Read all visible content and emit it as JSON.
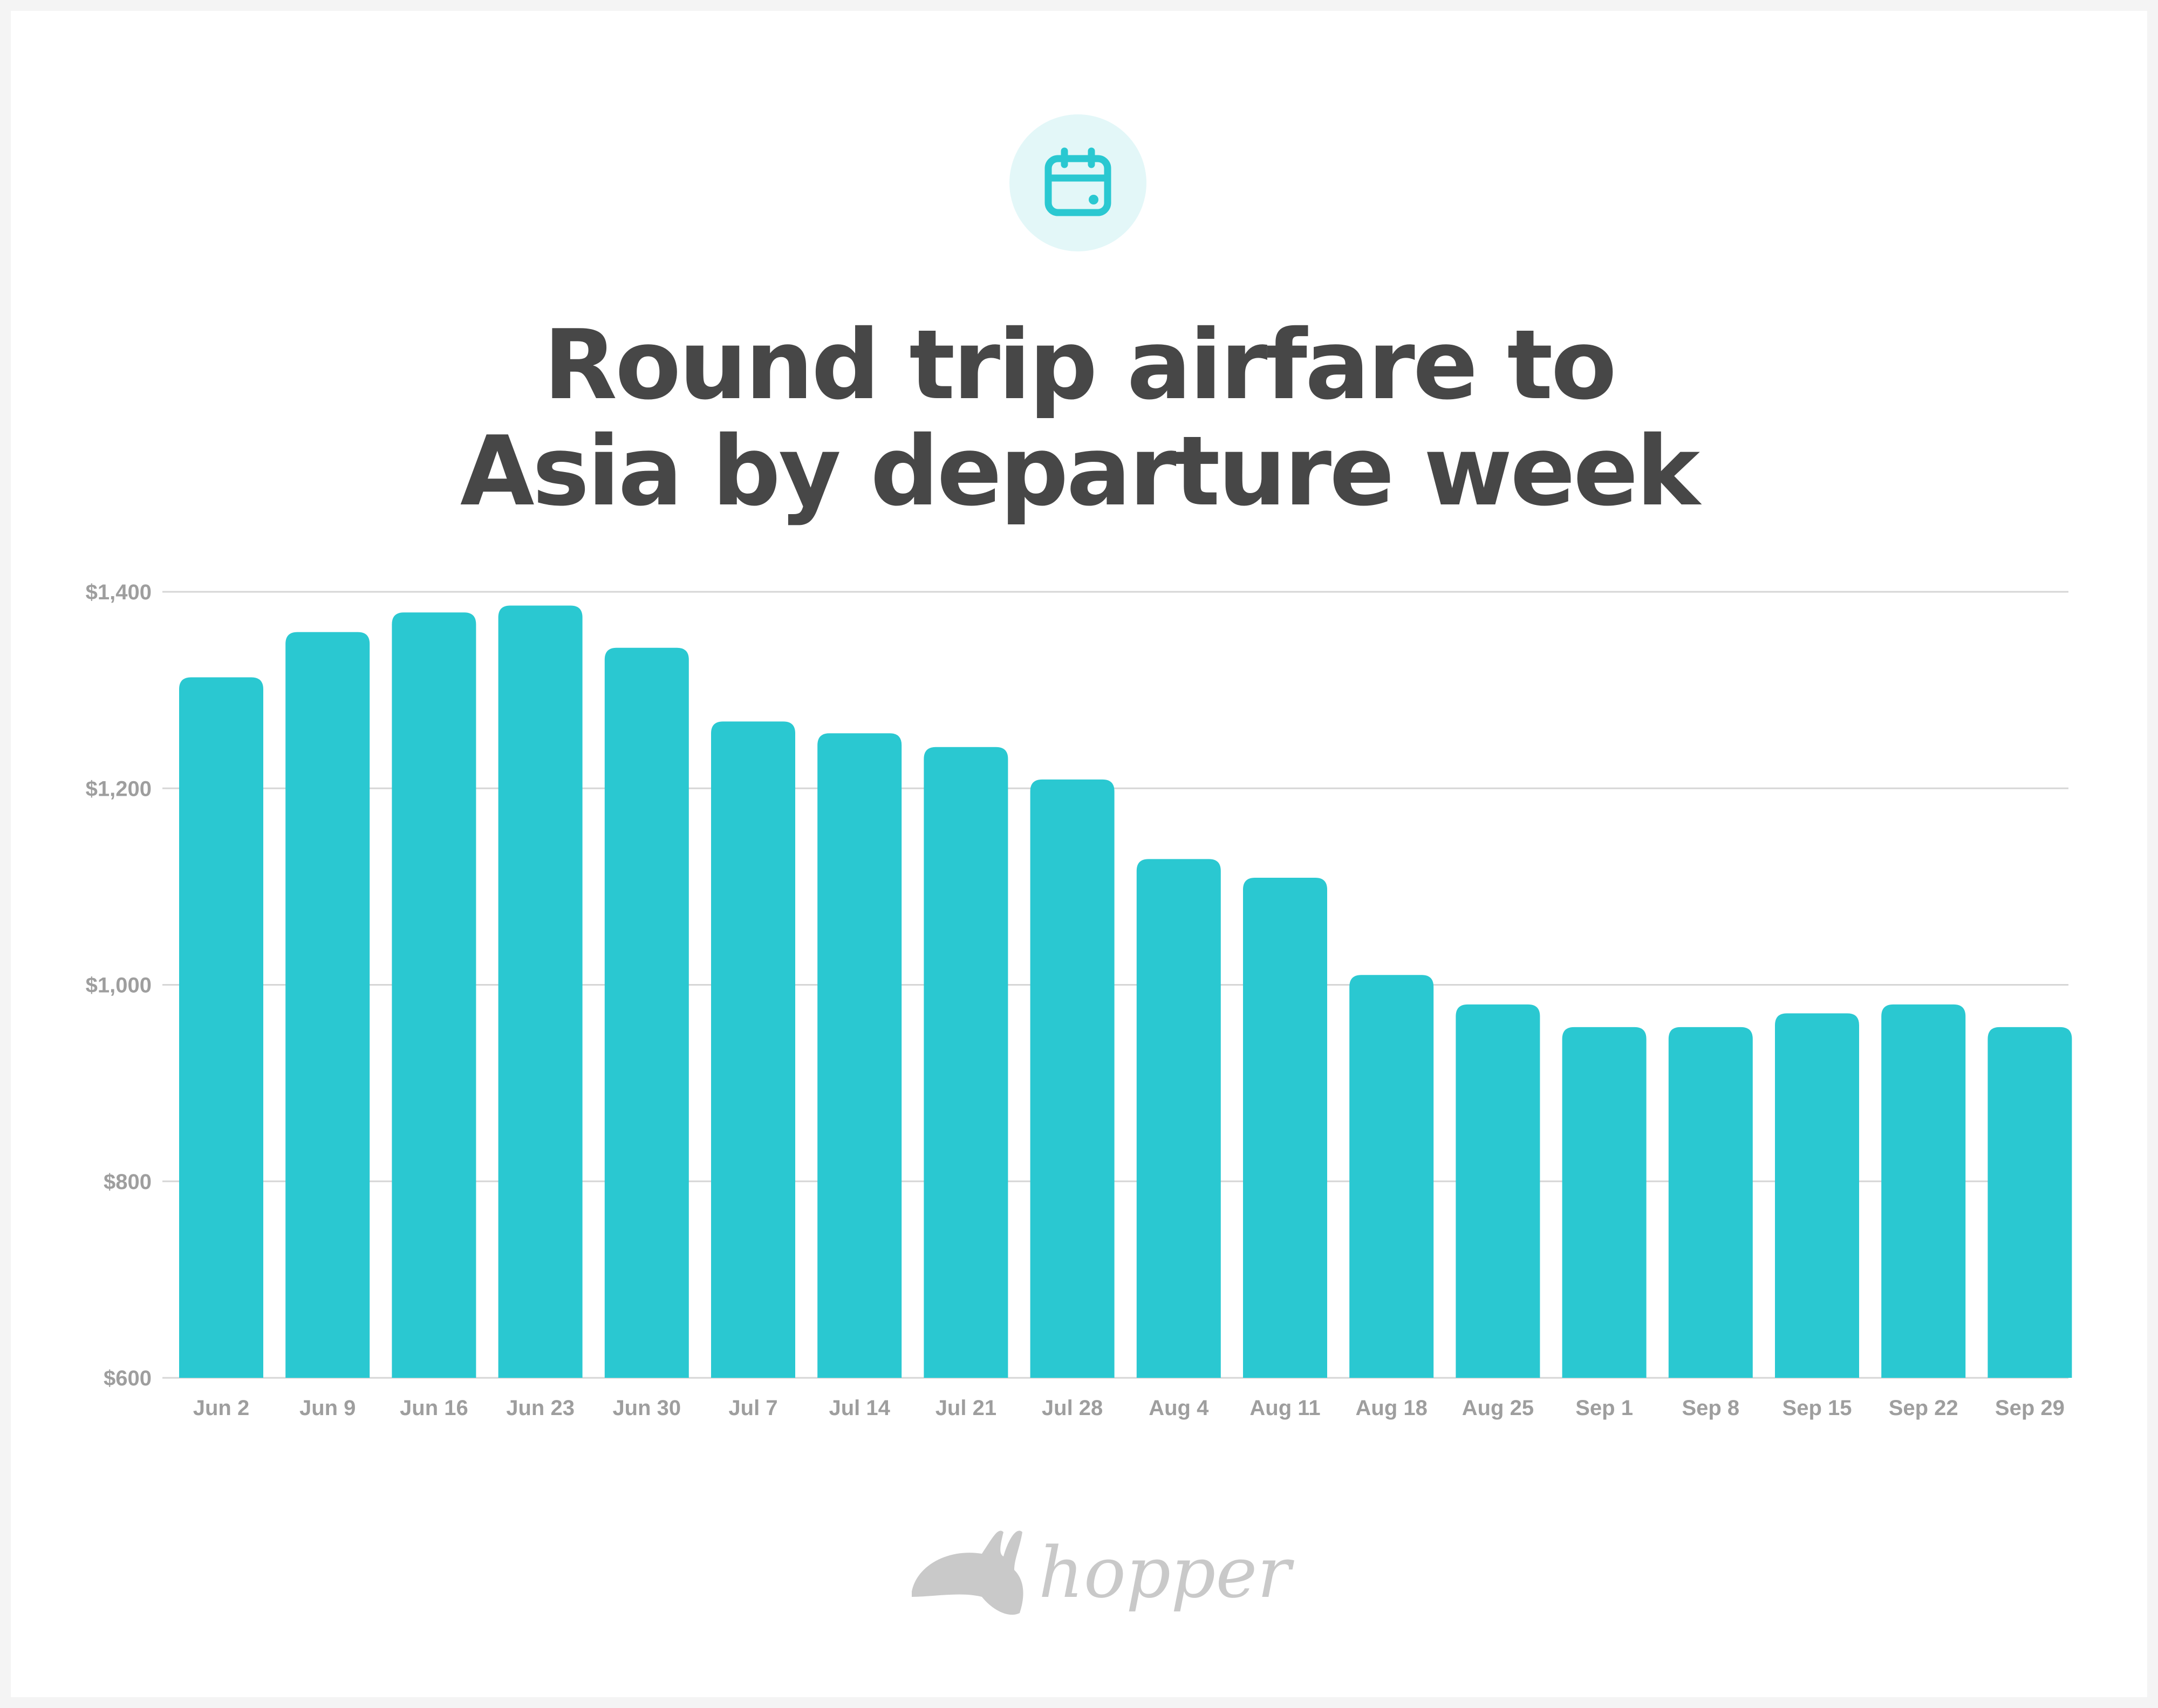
{
  "title_lines": [
    "Round trip airfare to",
    "Asia by departure week"
  ],
  "header_icon": "calendar-icon",
  "logo_text": "hopper",
  "colors": {
    "bar": "#2ac8d1",
    "icon": "#2ac8d1",
    "icon_bg": "#e3f7f8",
    "title": "#474747",
    "grid": "#d6d6d6",
    "tick": "#9e9e9e",
    "logo": "#c9c9c9"
  },
  "chart_data": {
    "type": "bar",
    "title": "Round trip airfare to Asia by departure week",
    "xlabel": "",
    "ylabel": "",
    "ylim": [
      600,
      1400
    ],
    "yticks": [
      600,
      800,
      1000,
      1200,
      1400
    ],
    "ytick_labels": [
      "$600",
      "$800",
      "$1,000",
      "$1,200",
      "$1,400"
    ],
    "grid": true,
    "categories": [
      "Jun 2",
      "Jun 9",
      "Jun 16",
      "Jun 23",
      "Jun 30",
      "Jul 7",
      "Jul 14",
      "Jul 21",
      "Jul 28",
      "Aug 4",
      "Aug 11",
      "Aug 18",
      "Aug 25",
      "Sep 1",
      "Sep 8",
      "Sep 15",
      "Sep 22",
      "Sep 29"
    ],
    "values": [
      1313,
      1359,
      1379,
      1386,
      1343,
      1268,
      1256,
      1242,
      1209,
      1128,
      1109,
      1010,
      980,
      957,
      957,
      971,
      980,
      957
    ]
  }
}
